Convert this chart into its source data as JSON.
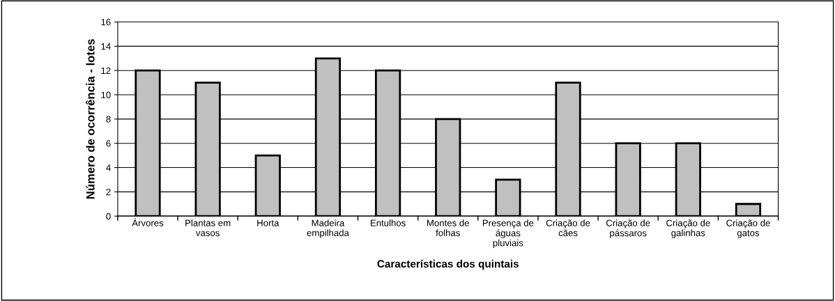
{
  "chart_data": {
    "type": "bar",
    "xlabel": "Características dos quintais",
    "ylabel": "Número de ocorrência - lotes",
    "categories": [
      "Árvores",
      "Plantas em\nvasos",
      "Horta",
      "Madeira\nempilhada",
      "Entulhos",
      "Montes de\nfolhas",
      "Presença de\náguas\npluviais",
      "Criação de\ncães",
      "Criação de\npássaros",
      "Criação de\ngalinhas",
      "Criação de\ngatos"
    ],
    "values": [
      12,
      11,
      5,
      13,
      12,
      8,
      3,
      11,
      6,
      6,
      1
    ],
    "color": "#c0c0c0",
    "ylim": [
      0,
      16
    ],
    "yticks": [
      0,
      2,
      4,
      6,
      8,
      10,
      12,
      14,
      16
    ],
    "grid": "y"
  }
}
